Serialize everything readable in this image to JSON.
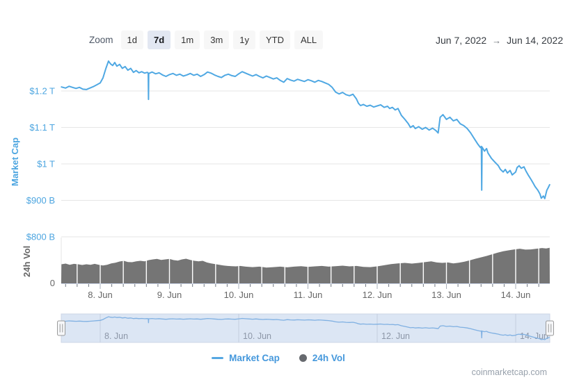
{
  "toolbar": {
    "zoom_label": "Zoom",
    "buttons": [
      {
        "label": "1d",
        "selected": false
      },
      {
        "label": "7d",
        "selected": true
      },
      {
        "label": "1m",
        "selected": false
      },
      {
        "label": "3m",
        "selected": false
      },
      {
        "label": "1y",
        "selected": false
      },
      {
        "label": "YTD",
        "selected": false
      },
      {
        "label": "ALL",
        "selected": false
      }
    ],
    "range": {
      "from": "Jun 7, 2022",
      "arrow": "→",
      "to": "Jun 14, 2022"
    }
  },
  "watermark": "coinmarketcap.com",
  "colors": {
    "line_blue": "#4FA8E3",
    "axis_blue": "#4CA5E0",
    "nav_line_blue": "#7FB0E2",
    "volume_gray": "#757575",
    "gridline": "#e6e6e6",
    "axis_line": "#ccd6eb",
    "tick_gray": "#666666",
    "nav_bg": "#dce6f4",
    "nav_border": "#ccd5e6",
    "nav_grid": "#c3cdde",
    "nav_label": "#8d97a8",
    "handle_fill": "#f6f7f9",
    "handle_stroke": "#999999"
  },
  "chart_data": {
    "type": "line+bar",
    "title": "",
    "x_axis": {
      "unit": "days since Jun 7, 2022 00:00 UTC",
      "range": [
        0.44,
        7.49
      ],
      "major_ticks": [
        {
          "d": 1,
          "label": "8. Jun"
        },
        {
          "d": 2,
          "label": "9. Jun"
        },
        {
          "d": 3,
          "label": "10. Jun"
        },
        {
          "d": 4,
          "label": "11. Jun"
        },
        {
          "d": 5,
          "label": "12. Jun"
        },
        {
          "d": 6,
          "label": "13. Jun"
        },
        {
          "d": 7,
          "label": "14. Jun"
        }
      ],
      "minor_tick_interval_days": 0.16667
    },
    "mcap_axis": {
      "label": "Market Cap",
      "unit": "USD",
      "range_B": [
        800,
        1333
      ],
      "ticks": [
        {
          "v": 1200,
          "label": "$1.2 T"
        },
        {
          "v": 1100,
          "label": "$1.1 T"
        },
        {
          "v": 1000,
          "label": "$1 T"
        },
        {
          "v": 900,
          "label": "$900 B"
        },
        {
          "v": 800,
          "label": "$800 B"
        }
      ]
    },
    "vol_axis": {
      "label": "24h Vol",
      "unit": "USD",
      "zero_label": "0",
      "range_B": [
        0,
        200
      ]
    },
    "legend": [
      {
        "label": "Market Cap",
        "marker": "line",
        "color": "#55A7E2"
      },
      {
        "label": "24h Vol",
        "marker": "circle",
        "color": "#66696e"
      }
    ],
    "navigator": {
      "labels": [
        {
          "d": 1,
          "label": "8. Jun"
        },
        {
          "d": 3,
          "label": "10. Jun"
        },
        {
          "d": 5,
          "label": "12. Jun"
        },
        {
          "d": 7,
          "label": "14. Jun"
        }
      ]
    },
    "series": [
      {
        "name": "Market Cap",
        "type": "line",
        "color": "#4FA8E3",
        "unit": "USD billions",
        "points": [
          [
            0.44,
            1211
          ],
          [
            0.5,
            1208
          ],
          [
            0.55,
            1213
          ],
          [
            0.6,
            1210
          ],
          [
            0.65,
            1207
          ],
          [
            0.7,
            1210
          ],
          [
            0.75,
            1205
          ],
          [
            0.8,
            1204
          ],
          [
            0.85,
            1208
          ],
          [
            0.9,
            1212
          ],
          [
            0.95,
            1217
          ],
          [
            1.0,
            1222
          ],
          [
            1.04,
            1236
          ],
          [
            1.08,
            1261
          ],
          [
            1.12,
            1282
          ],
          [
            1.15,
            1274
          ],
          [
            1.18,
            1270
          ],
          [
            1.21,
            1278
          ],
          [
            1.24,
            1268
          ],
          [
            1.28,
            1273
          ],
          [
            1.32,
            1262
          ],
          [
            1.36,
            1267
          ],
          [
            1.4,
            1257
          ],
          [
            1.44,
            1262
          ],
          [
            1.48,
            1251
          ],
          [
            1.52,
            1256
          ],
          [
            1.56,
            1250
          ],
          [
            1.6,
            1253
          ],
          [
            1.64,
            1249
          ],
          [
            1.68,
            1251
          ],
          [
            1.693,
            1249
          ],
          [
            1.697,
            1177
          ],
          [
            1.701,
            1248
          ],
          [
            1.75,
            1252
          ],
          [
            1.8,
            1247
          ],
          [
            1.85,
            1250
          ],
          [
            1.9,
            1244
          ],
          [
            1.95,
            1240
          ],
          [
            2.0,
            1245
          ],
          [
            2.05,
            1248
          ],
          [
            2.1,
            1243
          ],
          [
            2.15,
            1246
          ],
          [
            2.2,
            1241
          ],
          [
            2.25,
            1244
          ],
          [
            2.3,
            1248
          ],
          [
            2.35,
            1243
          ],
          [
            2.4,
            1246
          ],
          [
            2.45,
            1240
          ],
          [
            2.5,
            1245
          ],
          [
            2.55,
            1252
          ],
          [
            2.6,
            1249
          ],
          [
            2.65,
            1244
          ],
          [
            2.7,
            1240
          ],
          [
            2.75,
            1237
          ],
          [
            2.8,
            1243
          ],
          [
            2.85,
            1246
          ],
          [
            2.9,
            1242
          ],
          [
            2.95,
            1240
          ],
          [
            3.0,
            1247
          ],
          [
            3.05,
            1253
          ],
          [
            3.1,
            1249
          ],
          [
            3.15,
            1245
          ],
          [
            3.2,
            1241
          ],
          [
            3.25,
            1245
          ],
          [
            3.3,
            1240
          ],
          [
            3.35,
            1236
          ],
          [
            3.4,
            1241
          ],
          [
            3.45,
            1237
          ],
          [
            3.5,
            1233
          ],
          [
            3.55,
            1236
          ],
          [
            3.6,
            1229
          ],
          [
            3.65,
            1224
          ],
          [
            3.7,
            1234
          ],
          [
            3.75,
            1230
          ],
          [
            3.8,
            1227
          ],
          [
            3.85,
            1232
          ],
          [
            3.9,
            1229
          ],
          [
            3.95,
            1226
          ],
          [
            4.0,
            1231
          ],
          [
            4.05,
            1228
          ],
          [
            4.1,
            1224
          ],
          [
            4.15,
            1229
          ],
          [
            4.2,
            1226
          ],
          [
            4.25,
            1222
          ],
          [
            4.3,
            1218
          ],
          [
            4.35,
            1210
          ],
          [
            4.4,
            1197
          ],
          [
            4.45,
            1192
          ],
          [
            4.5,
            1196
          ],
          [
            4.55,
            1190
          ],
          [
            4.6,
            1187
          ],
          [
            4.65,
            1191
          ],
          [
            4.7,
            1178
          ],
          [
            4.73,
            1166
          ],
          [
            4.76,
            1160
          ],
          [
            4.8,
            1163
          ],
          [
            4.85,
            1158
          ],
          [
            4.9,
            1161
          ],
          [
            4.95,
            1156
          ],
          [
            5.0,
            1159
          ],
          [
            5.05,
            1162
          ],
          [
            5.1,
            1155
          ],
          [
            5.15,
            1158
          ],
          [
            5.18,
            1152
          ],
          [
            5.22,
            1155
          ],
          [
            5.26,
            1148
          ],
          [
            5.3,
            1152
          ],
          [
            5.35,
            1133
          ],
          [
            5.4,
            1122
          ],
          [
            5.45,
            1110
          ],
          [
            5.48,
            1100
          ],
          [
            5.52,
            1105
          ],
          [
            5.55,
            1097
          ],
          [
            5.6,
            1102
          ],
          [
            5.65,
            1095
          ],
          [
            5.7,
            1100
          ],
          [
            5.75,
            1093
          ],
          [
            5.8,
            1098
          ],
          [
            5.85,
            1091
          ],
          [
            5.88,
            1085
          ],
          [
            5.91,
            1128
          ],
          [
            5.95,
            1135
          ],
          [
            6.0,
            1122
          ],
          [
            6.05,
            1128
          ],
          [
            6.1,
            1118
          ],
          [
            6.15,
            1122
          ],
          [
            6.2,
            1110
          ],
          [
            6.25,
            1105
          ],
          [
            6.3,
            1097
          ],
          [
            6.35,
            1085
          ],
          [
            6.4,
            1070
          ],
          [
            6.45,
            1055
          ],
          [
            6.49,
            1045
          ],
          [
            6.505,
            1048
          ],
          [
            6.51,
            928
          ],
          [
            6.515,
            1046
          ],
          [
            6.55,
            1035
          ],
          [
            6.58,
            1042
          ],
          [
            6.6,
            1030
          ],
          [
            6.65,
            1015
          ],
          [
            6.7,
            1005
          ],
          [
            6.75,
            995
          ],
          [
            6.78,
            985
          ],
          [
            6.82,
            978
          ],
          [
            6.85,
            985
          ],
          [
            6.88,
            975
          ],
          [
            6.92,
            982
          ],
          [
            6.95,
            970
          ],
          [
            7.0,
            978
          ],
          [
            7.02,
            990
          ],
          [
            7.05,
            995
          ],
          [
            7.08,
            988
          ],
          [
            7.12,
            992
          ],
          [
            7.15,
            980
          ],
          [
            7.18,
            970
          ],
          [
            7.22,
            958
          ],
          [
            7.25,
            948
          ],
          [
            7.28,
            938
          ],
          [
            7.32,
            928
          ],
          [
            7.35,
            918
          ],
          [
            7.37,
            906
          ],
          [
            7.4,
            912
          ],
          [
            7.42,
            905
          ],
          [
            7.45,
            928
          ],
          [
            7.47,
            935
          ],
          [
            7.49,
            943
          ]
        ]
      },
      {
        "name": "24h Vol",
        "type": "bar",
        "color": "#757575",
        "unit": "USD billions",
        "points": [
          [
            0.44,
            82
          ],
          [
            0.5,
            85
          ],
          [
            0.56,
            80
          ],
          [
            0.62,
            84
          ],
          [
            0.68,
            82
          ],
          [
            0.74,
            79
          ],
          [
            0.8,
            82
          ],
          [
            0.86,
            80
          ],
          [
            0.92,
            84
          ],
          [
            0.98,
            80
          ],
          [
            1.04,
            77
          ],
          [
            1.1,
            80
          ],
          [
            1.16,
            86
          ],
          [
            1.22,
            89
          ],
          [
            1.28,
            94
          ],
          [
            1.34,
            97
          ],
          [
            1.4,
            92
          ],
          [
            1.46,
            91
          ],
          [
            1.52,
            95
          ],
          [
            1.58,
            97
          ],
          [
            1.64,
            95
          ],
          [
            1.7,
            100
          ],
          [
            1.76,
            103
          ],
          [
            1.82,
            105
          ],
          [
            1.88,
            101
          ],
          [
            1.94,
            103
          ],
          [
            2.0,
            105
          ],
          [
            2.06,
            100
          ],
          [
            2.12,
            98
          ],
          [
            2.18,
            103
          ],
          [
            2.24,
            106
          ],
          [
            2.3,
            101
          ],
          [
            2.36,
            97
          ],
          [
            2.42,
            95
          ],
          [
            2.48,
            97
          ],
          [
            2.54,
            90
          ],
          [
            2.6,
            86
          ],
          [
            2.66,
            83
          ],
          [
            2.72,
            80
          ],
          [
            2.78,
            77
          ],
          [
            2.84,
            75
          ],
          [
            2.9,
            74
          ],
          [
            2.96,
            73
          ],
          [
            3.02,
            75
          ],
          [
            3.1,
            72
          ],
          [
            3.2,
            70
          ],
          [
            3.3,
            72
          ],
          [
            3.4,
            68
          ],
          [
            3.5,
            70
          ],
          [
            3.6,
            72
          ],
          [
            3.7,
            69
          ],
          [
            3.8,
            72
          ],
          [
            3.9,
            74
          ],
          [
            4.0,
            71
          ],
          [
            4.1,
            73
          ],
          [
            4.2,
            75
          ],
          [
            4.3,
            72
          ],
          [
            4.4,
            74
          ],
          [
            4.5,
            76
          ],
          [
            4.6,
            73
          ],
          [
            4.7,
            75
          ],
          [
            4.8,
            71
          ],
          [
            4.9,
            70
          ],
          [
            5.0,
            73
          ],
          [
            5.1,
            78
          ],
          [
            5.2,
            83
          ],
          [
            5.3,
            86
          ],
          [
            5.4,
            88
          ],
          [
            5.5,
            85
          ],
          [
            5.6,
            88
          ],
          [
            5.7,
            92
          ],
          [
            5.78,
            95
          ],
          [
            5.86,
            90
          ],
          [
            5.94,
            88
          ],
          [
            6.02,
            90
          ],
          [
            6.1,
            86
          ],
          [
            6.18,
            89
          ],
          [
            6.26,
            93
          ],
          [
            6.34,
            99
          ],
          [
            6.42,
            106
          ],
          [
            6.5,
            112
          ],
          [
            6.58,
            118
          ],
          [
            6.66,
            125
          ],
          [
            6.74,
            132
          ],
          [
            6.82,
            138
          ],
          [
            6.9,
            142
          ],
          [
            6.98,
            146
          ],
          [
            7.06,
            149
          ],
          [
            7.14,
            145
          ],
          [
            7.22,
            146
          ],
          [
            7.3,
            149
          ],
          [
            7.38,
            152
          ],
          [
            7.44,
            150
          ],
          [
            7.49,
            153
          ]
        ]
      }
    ]
  }
}
